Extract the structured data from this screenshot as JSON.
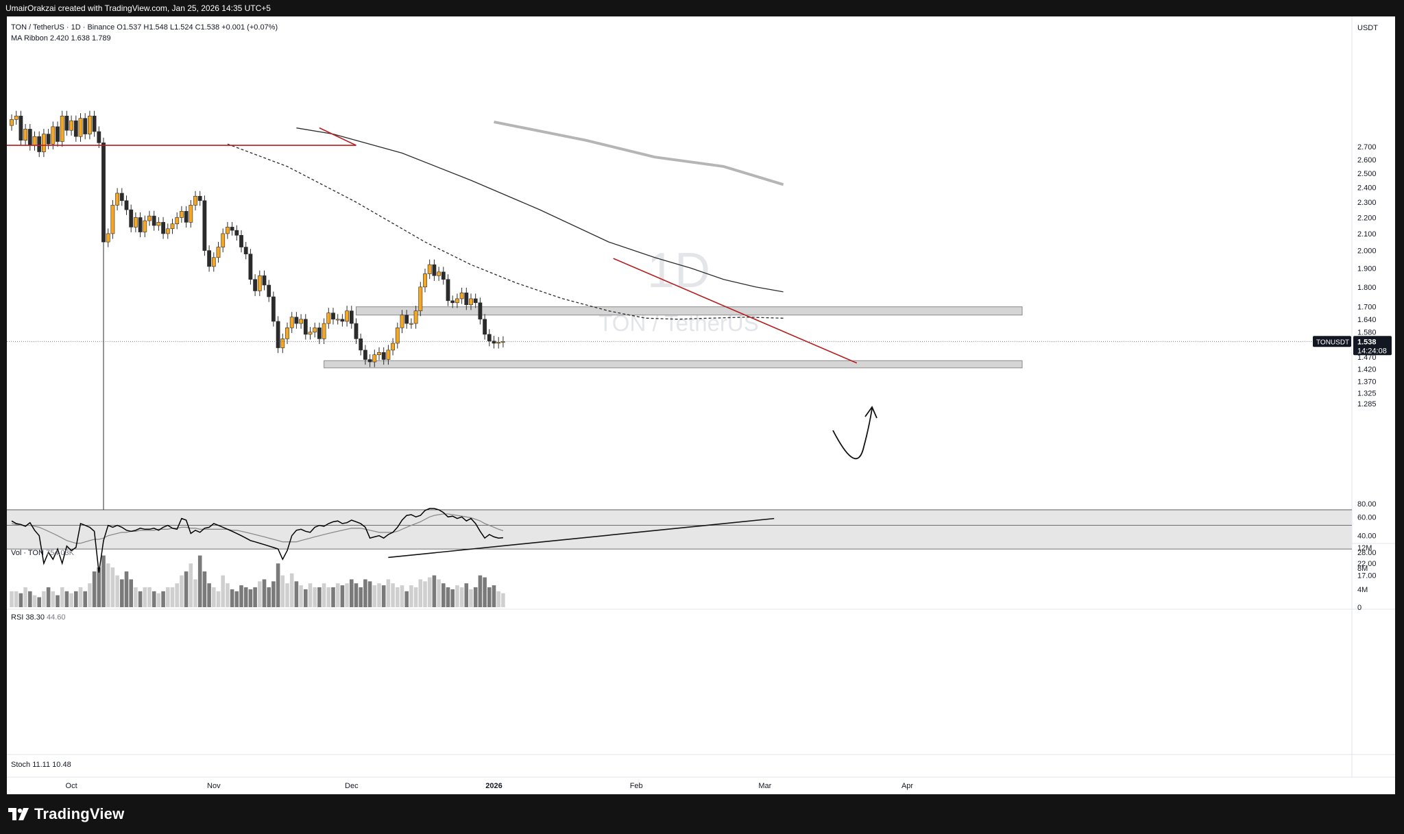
{
  "header": {
    "credit": "UmairOrakzai created with TradingView.com, Jan 25, 2026 14:35 UTC+5"
  },
  "legend": {
    "symbol": "TON / TetherUS · 1D · Binance",
    "ohlc": "O1.537 H1.548 L1.524 C1.538 +0.001 (+0.07%)",
    "ma_label": "MA Ribbon",
    "ma_values": "2.420 1.638 1.789",
    "vol_label": "Vol · TON",
    "vol_value": "754.03K",
    "rsi_label": "RSI",
    "rsi_value": "38.30",
    "rsi_ma": "44.60",
    "stoch_label": "Stoch",
    "stoch_values": "11.11 10.48"
  },
  "watermark": {
    "interval": "1D",
    "pair": "TON / TetherUS"
  },
  "price_axis": {
    "currency": "USDT",
    "last_price": "1.538",
    "countdown": "14:24:08",
    "ticker_tag": "TONUSDT"
  },
  "footer": {
    "brand": "TradingView"
  },
  "colors": {
    "up": "#f5a623",
    "down": "#2b2b2b",
    "trend": "#b71c1c",
    "zone": "#d5d5d5",
    "ma_fast": "#2b2b2b",
    "ma_slow": "#b5b5b5",
    "rsi": "#000000",
    "rsi_ma": "#8a8a8a",
    "rsi_band": "#e6e6e6"
  },
  "chart_data": {
    "type": "candlestick",
    "start_date": "2025-09-18",
    "x_ticks": [
      {
        "label": "Oct",
        "day": 13
      },
      {
        "label": "Nov",
        "day": 44
      },
      {
        "label": "Dec",
        "day": 74
      },
      {
        "label": "2026",
        "day": 105,
        "bold": true
      },
      {
        "label": "Feb",
        "day": 136
      },
      {
        "label": "Mar",
        "day": 164
      },
      {
        "label": "Apr",
        "day": 195
      }
    ],
    "price_ticks": [
      "2.700",
      "2.600",
      "2.500",
      "2.400",
      "2.300",
      "2.200",
      "2.100",
      "2.000",
      "1.900",
      "1.800",
      "1.700",
      "1.640",
      "1.580",
      "1.470",
      "1.420",
      "1.370",
      "1.325",
      "1.285"
    ],
    "volume_ticks": [
      "12M",
      "8M",
      "4M",
      "0"
    ],
    "rsi_ticks": [
      "80.00",
      "60.00",
      "40.00",
      "28.00",
      "22.00",
      "17.00"
    ],
    "close": [
      2.92,
      2.95,
      2.75,
      2.84,
      2.71,
      2.78,
      2.66,
      2.8,
      2.72,
      2.86,
      2.74,
      2.95,
      2.83,
      2.91,
      2.78,
      2.93,
      2.8,
      2.95,
      2.82,
      2.73,
      2.05,
      2.1,
      2.28,
      2.36,
      2.31,
      2.25,
      2.14,
      2.2,
      2.11,
      2.18,
      2.21,
      2.15,
      2.17,
      2.1,
      2.13,
      2.16,
      2.2,
      2.24,
      2.17,
      2.28,
      2.34,
      2.31,
      2.0,
      1.91,
      1.96,
      2.02,
      2.1,
      2.14,
      2.12,
      2.09,
      2.02,
      1.98,
      1.84,
      1.78,
      1.86,
      1.81,
      1.75,
      1.63,
      1.51,
      1.55,
      1.6,
      1.65,
      1.62,
      1.64,
      1.57,
      1.58,
      1.6,
      1.55,
      1.62,
      1.67,
      1.64,
      1.64,
      1.63,
      1.68,
      1.62,
      1.55,
      1.5,
      1.46,
      1.45,
      1.48,
      1.49,
      1.46,
      1.5,
      1.53,
      1.6,
      1.66,
      1.62,
      1.62,
      1.68,
      1.8,
      1.87,
      1.92,
      1.86,
      1.88,
      1.84,
      1.73,
      1.72,
      1.74,
      1.77,
      1.71,
      1.74,
      1.72,
      1.64,
      1.57,
      1.54,
      1.53,
      1.535,
      1.538
    ],
    "volume_m": [
      4,
      4,
      3.5,
      5,
      4,
      3,
      2.5,
      4,
      5,
      4,
      3,
      5,
      4,
      3.5,
      4,
      5,
      4,
      6,
      9,
      10,
      13,
      11,
      10,
      8,
      7,
      9,
      7,
      5,
      4,
      5,
      5,
      4,
      3.5,
      4,
      5,
      5,
      6,
      8,
      9,
      11,
      7,
      13,
      9,
      6,
      5,
      4,
      8,
      6,
      4.5,
      4,
      5.5,
      5,
      4.5,
      5,
      6.5,
      7,
      5,
      6.5,
      11,
      8,
      6,
      8.5,
      6.5,
      5.5,
      4.5,
      6,
      5,
      5,
      6,
      5,
      5,
      6,
      5.5,
      6,
      7,
      6,
      5,
      7,
      6.5,
      5.5,
      6,
      5.5,
      7,
      6,
      5,
      5.5,
      4,
      5.5,
      5,
      7,
      6.5,
      7.5,
      8,
      7,
      6,
      5,
      4.5,
      5.5,
      5,
      6,
      4.5,
      5,
      8,
      7.5,
      5,
      5.5,
      4,
      3.5
    ],
    "rsi": [
      55,
      52,
      51,
      49,
      53,
      45,
      40,
      22,
      28,
      24,
      30,
      22,
      32,
      29,
      31,
      52,
      50,
      48,
      44,
      18,
      36,
      50,
      48,
      50,
      48,
      45,
      44,
      45,
      47,
      46,
      46,
      47,
      45,
      48,
      50,
      47,
      46,
      58,
      56,
      42,
      45,
      43,
      47,
      48,
      52,
      50,
      48,
      46,
      44,
      42,
      40,
      38,
      36,
      35,
      34,
      33,
      32,
      31,
      30,
      24,
      29,
      40,
      45,
      46,
      44,
      43,
      48,
      50,
      49,
      52,
      54,
      55,
      52,
      53,
      56,
      54,
      52,
      48,
      38,
      39,
      40,
      38,
      41,
      43,
      48,
      56,
      62,
      63,
      60,
      62,
      69,
      72,
      72,
      70,
      66,
      60,
      61,
      58,
      60,
      55,
      58,
      52,
      44,
      38,
      41,
      39,
      38,
      38.3
    ],
    "rsi_ma": [
      52,
      51,
      50,
      50,
      50,
      49,
      48,
      46,
      44,
      42,
      40,
      38,
      36,
      35,
      34,
      34,
      35,
      36,
      37,
      37,
      38,
      40,
      41,
      42,
      43,
      43,
      44,
      44,
      45,
      45,
      45,
      45,
      46,
      46,
      46,
      47,
      47,
      48,
      48,
      47,
      47,
      46,
      46,
      46,
      46,
      46,
      46,
      46,
      45,
      45,
      44,
      43,
      42,
      41,
      40,
      39,
      38,
      37,
      36,
      35,
      35,
      35,
      35,
      36,
      37,
      38,
      39,
      40,
      41,
      42,
      43,
      44,
      45,
      46,
      47,
      47,
      47,
      46,
      45,
      44,
      43,
      43,
      43,
      43,
      44,
      46,
      48,
      50,
      52,
      54,
      57,
      60,
      62,
      63,
      64,
      64,
      63,
      62,
      61,
      60,
      59,
      57,
      55,
      52,
      50,
      48,
      46,
      44.6
    ],
    "ma_fast": [
      [
        62,
        2.85
      ],
      [
        70,
        2.8
      ],
      [
        85,
        2.65
      ],
      [
        100,
        2.45
      ],
      [
        115,
        2.25
      ],
      [
        130,
        2.05
      ],
      [
        140,
        1.96
      ],
      [
        148,
        1.9
      ],
      [
        155,
        1.84
      ],
      [
        162,
        1.8
      ],
      [
        168,
        1.775
      ]
    ],
    "ma_mid": [
      [
        47,
        2.72
      ],
      [
        60,
        2.55
      ],
      [
        75,
        2.3
      ],
      [
        90,
        2.05
      ],
      [
        100,
        1.92
      ],
      [
        110,
        1.82
      ],
      [
        120,
        1.74
      ],
      [
        130,
        1.68
      ],
      [
        138,
        1.645
      ],
      [
        145,
        1.64
      ],
      [
        152,
        1.645
      ],
      [
        160,
        1.65
      ],
      [
        168,
        1.645
      ]
    ],
    "ma_slow": [
      [
        105,
        2.9
      ],
      [
        125,
        2.75
      ],
      [
        140,
        2.62
      ],
      [
        155,
        2.55
      ],
      [
        168,
        2.42
      ]
    ],
    "zones": [
      {
        "from_day": 75,
        "to_day": 220,
        "top": 1.7,
        "bottom": 1.66
      },
      {
        "from_day": 68,
        "to_day": 220,
        "top": 1.455,
        "bottom": 1.425
      }
    ],
    "trendline_top": [
      [
        131,
        1.955
      ],
      [
        184,
        1.445
      ]
    ],
    "trendline_early": [
      [
        67,
        2.85
      ],
      [
        75,
        2.71
      ]
    ],
    "rsi_trendline": [
      [
        82,
        25
      ],
      [
        166,
        58
      ]
    ],
    "h_line_top": {
      "price": 2.71,
      "to_day": 75
    }
  }
}
